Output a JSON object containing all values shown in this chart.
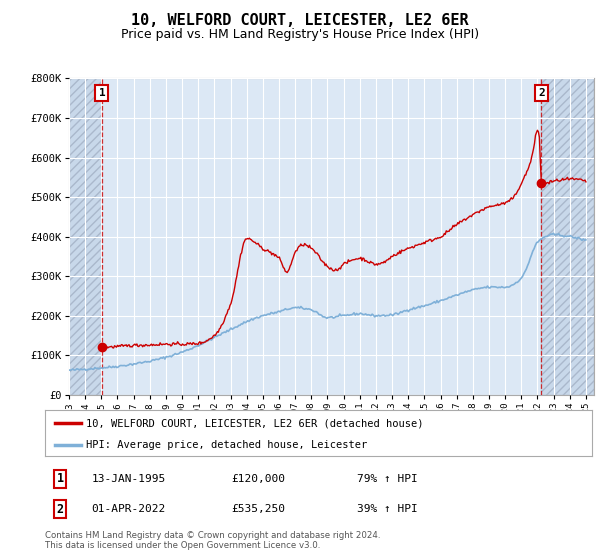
{
  "title": "10, WELFORD COURT, LEICESTER, LE2 6ER",
  "subtitle": "Price paid vs. HM Land Registry's House Price Index (HPI)",
  "title_fontsize": 11,
  "subtitle_fontsize": 9,
  "background_color": "#ffffff",
  "plot_bg_color": "#dce8f5",
  "hatch_bg_color": "#c8d8ea",
  "grid_color": "#ffffff",
  "sale1_x": 1995.04,
  "sale1_price": 120000,
  "sale2_x": 2022.25,
  "sale2_price": 535250,
  "xmin": 1993,
  "xmax": 2025.5,
  "ymin": 0,
  "ymax": 800000,
  "yticks": [
    0,
    100000,
    200000,
    300000,
    400000,
    500000,
    600000,
    700000,
    800000
  ],
  "ytick_labels": [
    "£0",
    "£100K",
    "£200K",
    "£300K",
    "£400K",
    "£500K",
    "£600K",
    "£700K",
    "£800K"
  ],
  "xtick_years": [
    1993,
    1994,
    1995,
    1996,
    1997,
    1998,
    1999,
    2000,
    2001,
    2002,
    2003,
    2004,
    2005,
    2006,
    2007,
    2008,
    2009,
    2010,
    2011,
    2012,
    2013,
    2014,
    2015,
    2016,
    2017,
    2018,
    2019,
    2020,
    2021,
    2022,
    2023,
    2024,
    2025
  ],
  "line_color_red": "#cc0000",
  "line_color_blue": "#7fb0d8",
  "legend_label_red": "10, WELFORD COURT, LEICESTER, LE2 6ER (detached house)",
  "legend_label_blue": "HPI: Average price, detached house, Leicester",
  "footer": "Contains HM Land Registry data © Crown copyright and database right 2024.\nThis data is licensed under the Open Government Licence v3.0.",
  "table_rows": [
    {
      "num": "1",
      "date": "13-JAN-1995",
      "price": "£120,000",
      "hpi": "79% ↑ HPI"
    },
    {
      "num": "2",
      "date": "01-APR-2022",
      "price": "£535,250",
      "hpi": "39% ↑ HPI"
    }
  ]
}
